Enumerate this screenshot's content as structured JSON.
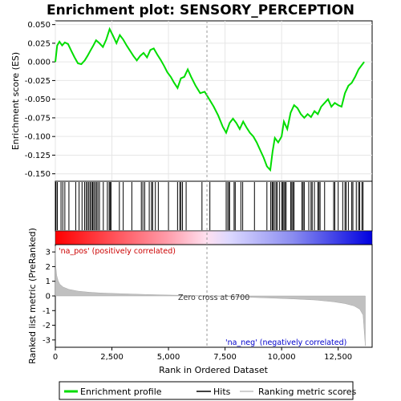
{
  "chart_data": {
    "type": "line",
    "title": "Enrichment plot: SENSORY_PERCEPTION",
    "xlabel": "Rank in Ordered Dataset",
    "ylabel_top": "Enrichment score (ES)",
    "ylabel_bottom": "Ranked list metric (PreRanked)",
    "x_ticks": [
      "0",
      "2,500",
      "5,000",
      "7,500",
      "10,000",
      "12,500"
    ],
    "x_tick_values": [
      0,
      2500,
      5000,
      7500,
      10000,
      12500
    ],
    "x_range": [
      0,
      14000
    ],
    "top_y_ticks": [
      "0.050",
      "0.025",
      "0.000",
      "-0.025",
      "-0.050",
      "-0.075",
      "-0.100",
      "-0.125",
      "-0.150"
    ],
    "top_y_tick_values": [
      0.05,
      0.025,
      0.0,
      -0.025,
      -0.05,
      -0.075,
      -0.1,
      -0.125,
      -0.15
    ],
    "top_y_range": [
      -0.16,
      0.055
    ],
    "bottom_y_ticks": [
      "3",
      "2",
      "1",
      "0",
      "-1",
      "-2",
      "-3"
    ],
    "bottom_y_tick_values": [
      3,
      2,
      1,
      0,
      -1,
      -2,
      -3
    ],
    "bottom_y_range": [
      -3.5,
      3.5
    ],
    "zero_cross_label": "Zero cross at 6700",
    "zero_cross": 6700,
    "pos_label": "'na_pos' (positively correlated)",
    "neg_label": "'na_neg' (negatively correlated)",
    "legend": [
      {
        "name": "Enrichment profile",
        "color": "#00dd00"
      },
      {
        "name": "Hits",
        "color": "#000000"
      },
      {
        "name": "Ranking metric scores",
        "color": "#c0c0c0"
      }
    ],
    "colors": {
      "profile": "#00dd00",
      "hits": "#000000",
      "metric": "#c0c0c0",
      "pos_label": "#cc0000",
      "neg_label": "#0000cc"
    },
    "es_profile": {
      "x": [
        0,
        80,
        180,
        300,
        420,
        560,
        700,
        850,
        1000,
        1150,
        1300,
        1420,
        1550,
        1680,
        1800,
        1950,
        2100,
        2250,
        2400,
        2550,
        2700,
        2850,
        3000,
        3150,
        3300,
        3450,
        3600,
        3750,
        3900,
        4050,
        4200,
        4350,
        4500,
        4650,
        4800,
        4950,
        5100,
        5250,
        5400,
        5550,
        5700,
        5850,
        6000,
        6200,
        6400,
        6600,
        6800,
        7000,
        7200,
        7400,
        7550,
        7700,
        7850,
        8000,
        8150,
        8300,
        8450,
        8600,
        8750,
        8900,
        9050,
        9200,
        9350,
        9500,
        9600,
        9700,
        9850,
        10000,
        10100,
        10250,
        10400,
        10550,
        10700,
        10850,
        11000,
        11150,
        11300,
        11450,
        11600,
        11750,
        11900,
        12050,
        12200,
        12350,
        12500,
        12650,
        12800,
        12950,
        13100,
        13250,
        13400,
        13550,
        13650
      ],
      "y": [
        0.0,
        0.022,
        0.027,
        0.022,
        0.026,
        0.024,
        0.015,
        0.006,
        -0.002,
        -0.003,
        0.002,
        0.008,
        0.015,
        0.022,
        0.029,
        0.025,
        0.02,
        0.03,
        0.044,
        0.035,
        0.025,
        0.036,
        0.03,
        0.022,
        0.015,
        0.008,
        0.002,
        0.008,
        0.012,
        0.006,
        0.016,
        0.018,
        0.01,
        0.003,
        -0.005,
        -0.014,
        -0.02,
        -0.028,
        -0.035,
        -0.022,
        -0.02,
        -0.01,
        -0.02,
        -0.032,
        -0.042,
        -0.04,
        -0.05,
        -0.06,
        -0.072,
        -0.087,
        -0.095,
        -0.082,
        -0.076,
        -0.082,
        -0.09,
        -0.08,
        -0.088,
        -0.095,
        -0.1,
        -0.108,
        -0.118,
        -0.128,
        -0.14,
        -0.145,
        -0.12,
        -0.102,
        -0.108,
        -0.1,
        -0.08,
        -0.09,
        -0.068,
        -0.058,
        -0.062,
        -0.07,
        -0.075,
        -0.07,
        -0.074,
        -0.066,
        -0.07,
        -0.06,
        -0.055,
        -0.05,
        -0.06,
        -0.055,
        -0.058,
        -0.06,
        -0.042,
        -0.032,
        -0.028,
        -0.02,
        -0.01,
        -0.004,
        0.0
      ]
    },
    "hits_x": [
      30,
      90,
      250,
      330,
      420,
      600,
      900,
      1050,
      1180,
      1290,
      1360,
      1420,
      1480,
      1540,
      1600,
      1650,
      1700,
      1760,
      1820,
      1880,
      1950,
      2120,
      2300,
      2380,
      2420,
      2460,
      2830,
      3000,
      3380,
      3800,
      3870,
      3950,
      4150,
      4250,
      4300,
      4420,
      4550,
      5000,
      5400,
      5500,
      5550,
      5620,
      5780,
      6480,
      6830,
      7550,
      7620,
      7680,
      7700,
      7900,
      7950,
      8200,
      8280,
      8800,
      9350,
      9520,
      9580,
      9620,
      9680,
      9750,
      9800,
      9900,
      10000,
      10050,
      10100,
      10150,
      10200,
      10400,
      10450,
      10500,
      10550,
      10900,
      10950,
      11000,
      11200,
      11300,
      11350,
      11450,
      11600,
      11650,
      11700,
      11900,
      12300,
      12350,
      12500,
      12700,
      12800,
      12850,
      12950,
      13100,
      13150,
      13300,
      13400,
      13450,
      13550,
      13600
    ],
    "metric_curve": {
      "x": [
        0,
        20,
        60,
        120,
        200,
        350,
        600,
        1000,
        1500,
        2000,
        3000,
        4000,
        5000,
        6000,
        6700,
        7500,
        8500,
        9500,
        10500,
        11500,
        12300,
        12800,
        13200,
        13450,
        13600,
        13700
      ],
      "y": [
        3.4,
        2.0,
        1.4,
        1.05,
        0.8,
        0.6,
        0.45,
        0.33,
        0.25,
        0.2,
        0.15,
        0.1,
        0.06,
        0.03,
        0.0,
        -0.04,
        -0.09,
        -0.14,
        -0.2,
        -0.28,
        -0.4,
        -0.52,
        -0.68,
        -0.9,
        -1.3,
        -3.4
      ]
    }
  }
}
